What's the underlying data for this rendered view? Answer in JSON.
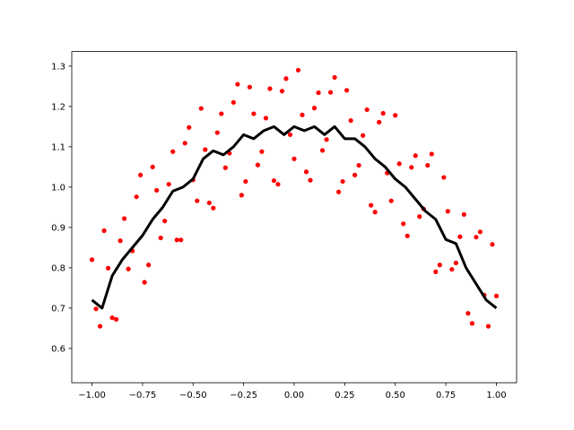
{
  "chart_data": {
    "type": "scatter",
    "xlim": [
      -1.1,
      1.1
    ],
    "ylim": [
      0.515,
      1.336
    ],
    "xticks": [
      {
        "value": -1,
        "label": "−1.00"
      },
      {
        "value": -0.75,
        "label": "−0.75"
      },
      {
        "value": -0.5,
        "label": "−0.50"
      },
      {
        "value": -0.25,
        "label": "−0.25"
      },
      {
        "value": 0,
        "label": "0.00"
      },
      {
        "value": 0.25,
        "label": "0.25"
      },
      {
        "value": 0.5,
        "label": "0.50"
      },
      {
        "value": 0.75,
        "label": "0.75"
      },
      {
        "value": 1,
        "label": "1.00"
      }
    ],
    "yticks": [
      0.6,
      0.7,
      0.8,
      0.9,
      {
        "value": 1,
        "label": "1.0"
      },
      1.1,
      1.2,
      1.3
    ],
    "series": [
      {
        "type": "scatter",
        "color": "#ff0000",
        "x": [
          -1.0,
          -0.96,
          -0.92,
          -0.88,
          -0.84,
          -0.8,
          -0.76,
          -0.72,
          -0.68,
          -0.64,
          -0.6,
          -0.56,
          -0.52,
          -0.48,
          -0.44,
          -0.4,
          -0.36,
          -0.32,
          -0.28,
          -0.24,
          -0.2,
          -0.16,
          -0.12,
          -0.08,
          -0.04,
          0.0,
          0.04,
          0.08,
          0.12,
          0.16,
          0.2,
          0.24,
          0.28,
          0.32,
          0.36,
          0.4,
          0.44,
          0.48,
          0.52,
          0.56,
          0.6,
          0.64,
          0.68,
          0.72,
          0.76,
          0.8,
          0.84,
          0.88,
          0.92,
          0.96,
          1.0,
          -0.98,
          -0.94,
          -0.9,
          -0.86,
          -0.82,
          -0.78,
          -0.74,
          -0.7,
          -0.66,
          -0.62,
          -0.58,
          -0.54,
          -0.5,
          -0.46,
          -0.42,
          -0.38,
          -0.34,
          -0.3,
          -0.26,
          -0.22,
          -0.18,
          -0.14,
          -0.1,
          -0.06,
          -0.02,
          0.02,
          0.06,
          0.1,
          0.14,
          0.18,
          0.22,
          0.26,
          0.3,
          0.34,
          0.38,
          0.42,
          0.46,
          0.5,
          0.54,
          0.58,
          0.62,
          0.66,
          0.7,
          0.74,
          0.78,
          0.82,
          0.86,
          0.9,
          0.94,
          0.98
        ],
        "values": [
          0.82,
          0.655,
          0.799,
          0.672,
          0.922,
          0.842,
          1.03,
          0.807,
          0.992,
          0.916,
          1.088,
          0.869,
          1.148,
          0.966,
          1.093,
          0.948,
          1.182,
          1.084,
          1.255,
          1.014,
          1.182,
          1.088,
          1.244,
          1.007,
          1.269,
          1.07,
          1.179,
          1.017,
          1.234,
          1.118,
          1.272,
          1.014,
          1.165,
          1.054,
          1.192,
          0.938,
          1.183,
          0.966,
          1.058,
          0.879,
          1.078,
          0.946,
          1.082,
          0.807,
          0.94,
          0.812,
          0.932,
          0.662,
          0.889,
          0.655,
          0.73,
          0.698,
          0.892,
          0.676,
          0.867,
          0.797,
          0.976,
          0.764,
          1.05,
          0.874,
          1.007,
          0.869,
          1.109,
          1.018,
          1.195,
          0.961,
          1.135,
          1.048,
          1.21,
          0.98,
          1.248,
          1.055,
          1.171,
          1.016,
          1.238,
          1.13,
          1.29,
          1.038,
          1.196,
          1.091,
          1.235,
          0.988,
          1.24,
          1.03,
          1.128,
          0.955,
          1.161,
          1.035,
          1.178,
          0.909,
          1.049,
          0.927,
          1.054,
          0.79,
          1.024,
          0.796,
          0.877,
          0.687,
          0.876,
          0.732,
          0.858
        ]
      },
      {
        "type": "line",
        "color": "#000000",
        "x": [
          -1.0,
          -0.95,
          -0.9,
          -0.85,
          -0.8,
          -0.75,
          -0.7,
          -0.65,
          -0.6,
          -0.55,
          -0.5,
          -0.45,
          -0.4,
          -0.35,
          -0.3,
          -0.25,
          -0.2,
          -0.15,
          -0.1,
          -0.05,
          0.0,
          0.05,
          0.1,
          0.15,
          0.2,
          0.25,
          0.3,
          0.35,
          0.4,
          0.45,
          0.5,
          0.55,
          0.6,
          0.65,
          0.7,
          0.75,
          0.8,
          0.85,
          0.9,
          0.95,
          1.0
        ],
        "values": [
          0.72,
          0.7,
          0.78,
          0.82,
          0.85,
          0.88,
          0.92,
          0.95,
          0.99,
          1.0,
          1.02,
          1.07,
          1.09,
          1.08,
          1.1,
          1.13,
          1.12,
          1.14,
          1.15,
          1.13,
          1.15,
          1.14,
          1.15,
          1.13,
          1.15,
          1.12,
          1.12,
          1.1,
          1.07,
          1.05,
          1.02,
          1.0,
          0.97,
          0.94,
          0.92,
          0.87,
          0.86,
          0.8,
          0.76,
          0.72,
          0.7
        ]
      }
    ]
  }
}
